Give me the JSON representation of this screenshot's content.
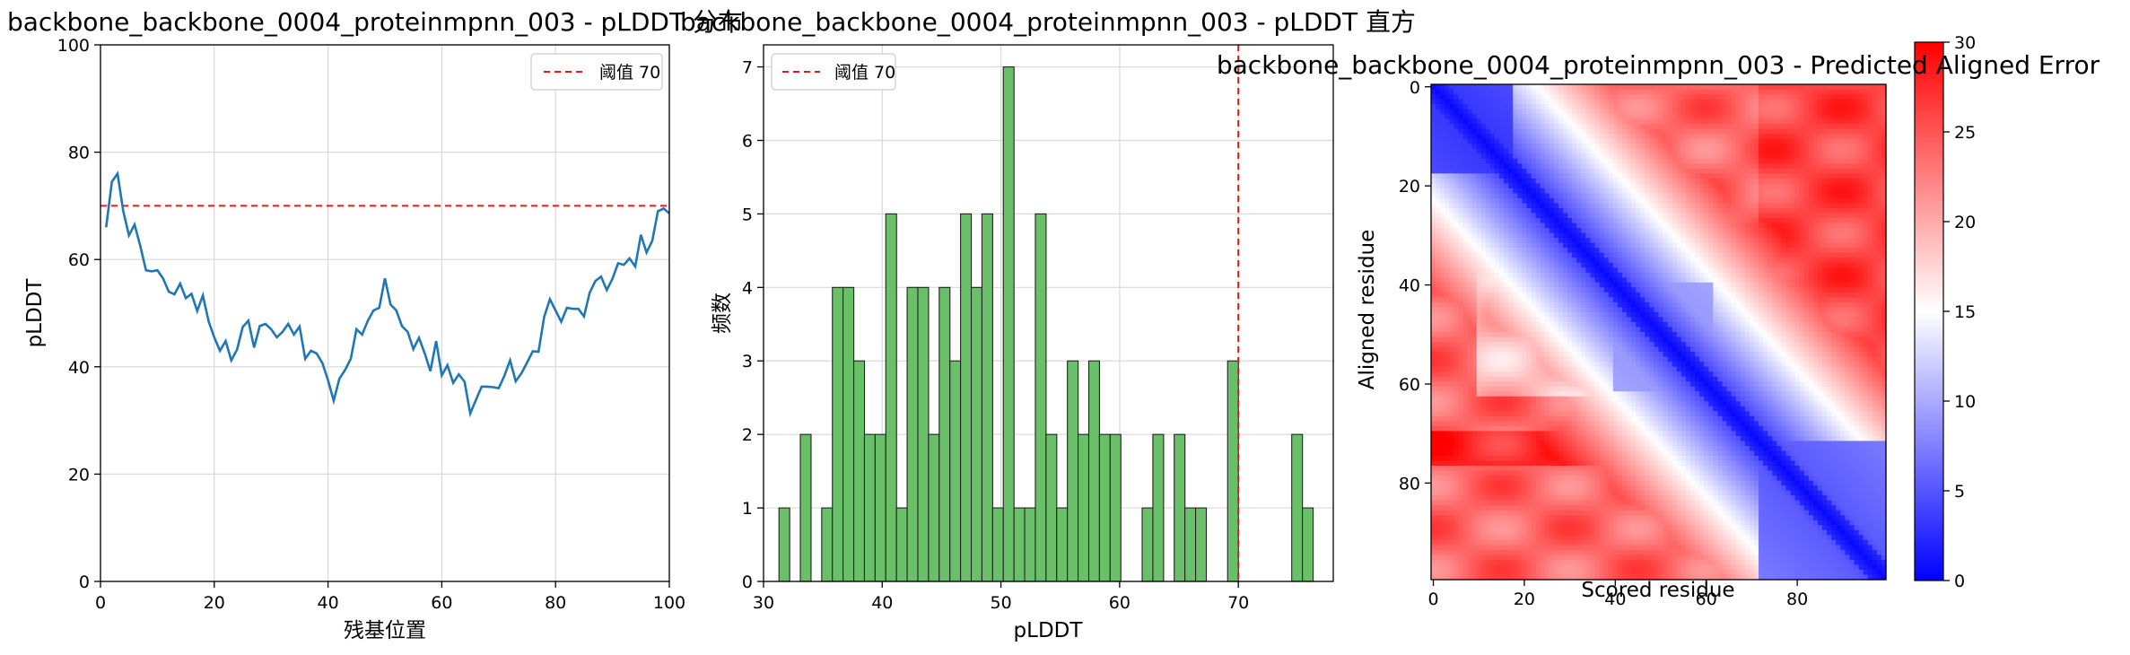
{
  "chart_data": [
    {
      "type": "line",
      "title": "backbone_backbone_0004_proteinmpnn_003 - pLDDT 分布",
      "xlabel": "残基位置",
      "ylabel": "pLDDT",
      "xlim": [
        0,
        100
      ],
      "ylim": [
        0,
        100
      ],
      "xticks": [
        "0",
        "20",
        "40",
        "60",
        "80",
        "100"
      ],
      "yticks": [
        "0",
        "20",
        "40",
        "60",
        "80",
        "100"
      ],
      "grid": true,
      "legend": {
        "placement": "top-right",
        "entries": [
          "阈值 70"
        ]
      },
      "threshold": 70,
      "colors": {
        "line": "#1f77b4",
        "threshold": "#e31a1c"
      },
      "x": [
        1,
        2,
        3,
        4,
        5,
        6,
        7,
        8,
        9,
        10,
        11,
        12,
        13,
        14,
        15,
        16,
        17,
        18,
        19,
        20,
        21,
        22,
        23,
        24,
        25,
        26,
        27,
        28,
        29,
        30,
        31,
        32,
        33,
        34,
        35,
        36,
        37,
        38,
        39,
        40,
        41,
        42,
        43,
        44,
        45,
        46,
        47,
        48,
        49,
        50,
        51,
        52,
        53,
        54,
        55,
        56,
        57,
        58,
        59,
        60,
        61,
        62,
        63,
        64,
        65,
        66,
        67,
        68,
        69,
        70,
        71,
        72,
        73,
        74,
        75,
        76,
        77,
        78,
        79,
        80,
        81,
        82,
        83,
        84,
        85,
        86,
        87,
        88,
        89,
        90,
        91,
        92,
        93,
        94,
        95,
        96,
        97,
        98,
        99,
        100
      ],
      "values": [
        66,
        74.5,
        76,
        69,
        64.5,
        66.5,
        62.5,
        58,
        57.8,
        58,
        56.5,
        54,
        53.5,
        55.5,
        52.8,
        53.6,
        50.4,
        53.3,
        48.5,
        45.5,
        43,
        44.8,
        41.2,
        43.2,
        47.4,
        48.6,
        43.6,
        47.6,
        48,
        47,
        45.5,
        46.5,
        48,
        46,
        47.5,
        41.5,
        43,
        42.5,
        40.7,
        37.5,
        33.7,
        37.8,
        39.4,
        41.5,
        47,
        46,
        48.6,
        50.5,
        51,
        56.5,
        51.6,
        50.5,
        47.6,
        46.5,
        43.3,
        45.4,
        42.5,
        39.2,
        44.8,
        38.4,
        40.3,
        37,
        38.6,
        37.2,
        31.3,
        33.8,
        36.3,
        36.3,
        36.2,
        36,
        38.3,
        41.2,
        37.3,
        38.8,
        40.8,
        42.9,
        42.8,
        49.3,
        52.6,
        50.5,
        48.4,
        51,
        50.8,
        50.8,
        49.4,
        53.8,
        56,
        56.8,
        54.3,
        56.4,
        59.3,
        59,
        60.2,
        58.7,
        64.6,
        61.3,
        63.5,
        69,
        69.5,
        68.6
      ]
    },
    {
      "type": "bar",
      "title": "backbone_backbone_0004_proteinmpnn_003 - pLDDT 直方",
      "xlabel": "pLDDT",
      "ylabel": "频数",
      "xlim": [
        30,
        78
      ],
      "ylim": [
        0,
        7.3
      ],
      "xticks": [
        "30",
        "40",
        "50",
        "60",
        "70"
      ],
      "yticks": [
        "0",
        "1",
        "2",
        "3",
        "4",
        "5",
        "6",
        "7"
      ],
      "grid": true,
      "legend": {
        "placement": "top-left",
        "entries": [
          "阈值 70"
        ]
      },
      "threshold": 70,
      "bin_width": 0.905,
      "colors": {
        "bar": "#6abf69",
        "edge": "#222222",
        "threshold": "#e31a1c"
      },
      "bins": [
        31.3,
        32.2,
        33.1,
        34.0,
        34.9,
        35.8,
        36.7,
        37.6,
        38.5,
        39.4,
        40.3,
        41.2,
        42.1,
        43.0,
        43.9,
        44.8,
        45.7,
        46.6,
        47.5,
        48.4,
        49.3,
        50.2,
        51.1,
        52.0,
        52.9,
        53.8,
        54.7,
        55.6,
        56.5,
        57.4,
        58.3,
        59.2,
        60.1,
        61.0,
        61.9,
        62.8,
        63.7,
        64.6,
        65.5,
        66.4,
        67.3,
        68.2,
        69.1,
        70.0,
        70.9,
        71.8,
        72.7,
        73.6,
        74.5,
        75.4
      ],
      "values": [
        1,
        0,
        2,
        0,
        1,
        4,
        4,
        3,
        2,
        2,
        5,
        1,
        4,
        4,
        2,
        4,
        3,
        5,
        4,
        5,
        1,
        7,
        1,
        1,
        5,
        2,
        1,
        3,
        2,
        3,
        2,
        2,
        0,
        0,
        1,
        2,
        0,
        2,
        1,
        1,
        0,
        0,
        3,
        0,
        0,
        0,
        0,
        0,
        2,
        1
      ]
    },
    {
      "type": "heatmap",
      "title": "backbone_backbone_0004_proteinmpnn_003 - Predicted Aligned Error",
      "xlabel": "Scored residue",
      "ylabel": "Aligned residue",
      "size": 100,
      "xticks": [
        "0",
        "20",
        "40",
        "60",
        "80"
      ],
      "yticks": [
        "0",
        "20",
        "40",
        "60",
        "80"
      ],
      "colorbar": {
        "min": 0,
        "max": 30,
        "ticks": [
          "0",
          "5",
          "10",
          "15",
          "20",
          "25",
          "30"
        ],
        "colormap": "bwr"
      },
      "blocks": [
        {
          "range": [
            0,
            18
          ],
          "pae": 3
        },
        {
          "range": [
            40,
            62
          ],
          "pae": 8
        },
        {
          "range": [
            72,
            100
          ],
          "pae": 5
        }
      ],
      "background_pae": 24
    }
  ]
}
